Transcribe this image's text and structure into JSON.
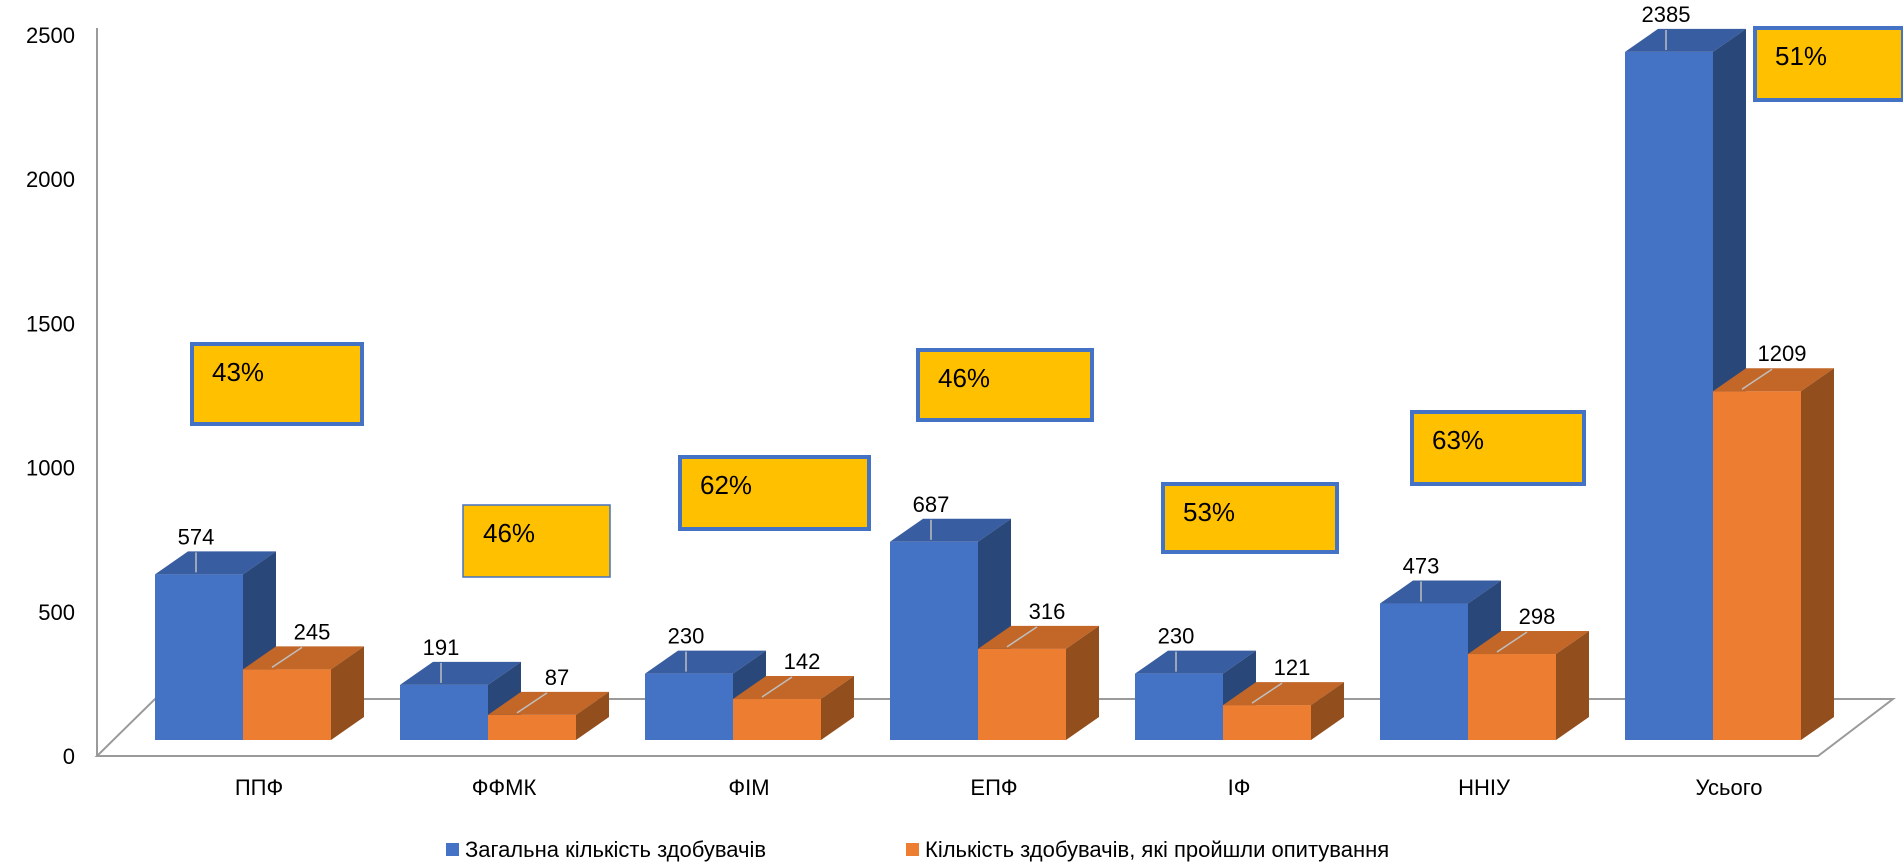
{
  "chart_data": {
    "type": "bar",
    "categories": [
      "ППФ",
      "ФФМК",
      "ФІМ",
      "ЕПФ",
      "ІФ",
      "ННІУ",
      "Усього"
    ],
    "series": [
      {
        "name": "Загальна кількість здобувачів",
        "values": [
          574,
          191,
          230,
          687,
          230,
          473,
          2385
        ],
        "color": "#4472C4"
      },
      {
        "name": "Кількість здобувачів, які пройшли опитування",
        "values": [
          245,
          87,
          142,
          316,
          121,
          298,
          1209
        ],
        "color": "#ED7D31"
      }
    ],
    "data_labels": {
      "s0": [
        "574",
        "191",
        "230",
        "687",
        "230",
        "473",
        "2385"
      ],
      "s1": [
        "245",
        "87",
        "142",
        "316",
        "121",
        "298",
        "1209"
      ]
    },
    "percent_labels": [
      "43%",
      "46%",
      "62%",
      "46%",
      "53%",
      "63%",
      "51%"
    ],
    "percent_values": [
      43,
      46,
      62,
      46,
      53,
      63,
      51
    ],
    "yticks": [
      "0",
      "500",
      "1000",
      "1500",
      "2000",
      "2500"
    ],
    "ylim": [
      0,
      2500
    ],
    "legend_position": "bottom",
    "grid": false,
    "callout_color": "#FFC000",
    "callout_border": "#4472C4"
  }
}
